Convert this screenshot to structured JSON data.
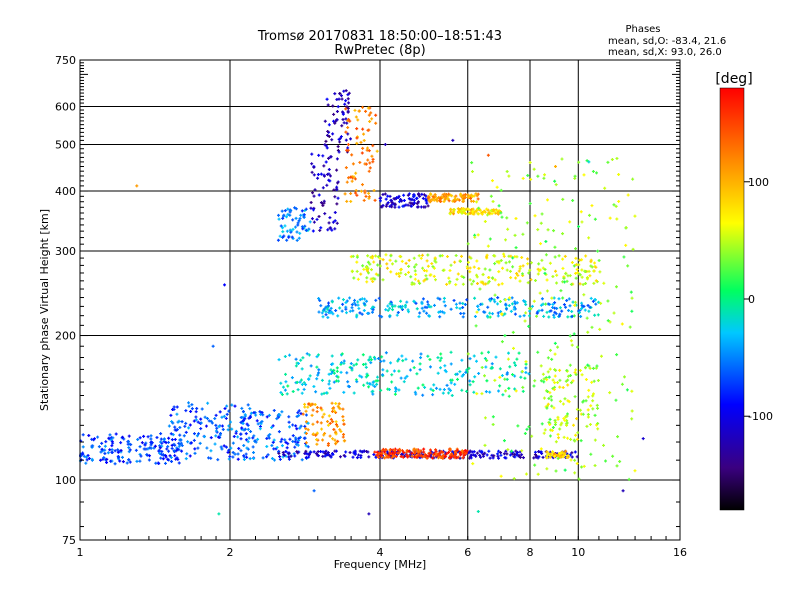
{
  "chart_data": {
    "type": "scatter",
    "title": "Tromsø 20170831 18:50:00–18:51:43",
    "subtitle": "RwPretec (8p)",
    "xlabel": "Frequency [MHz]",
    "ylabel": "Stationary phase Virtual Height [km]",
    "x_scale": "log2",
    "y_scale": "log",
    "xlim": [
      1,
      16
    ],
    "ylim": [
      75,
      750
    ],
    "x_ticks": [
      1,
      2,
      4,
      6,
      8,
      10,
      16
    ],
    "x_tick_labels": [
      "1",
      "2",
      "4",
      "6",
      "8",
      "10",
      "16"
    ],
    "y_ticks": [
      75,
      100,
      200,
      300,
      400,
      500,
      600,
      750
    ],
    "y_tick_labels": [
      "75",
      "100",
      "200",
      "300",
      "400",
      "500",
      "600",
      "750"
    ],
    "grid": true,
    "legend": {
      "title": "Phases",
      "lines": [
        "mean, sd,O: -83.4, 21.6",
        "mean, sd,X:  93.0, 26.0"
      ],
      "position": "top-right"
    },
    "colorbar": {
      "label": "[deg]",
      "min": -180,
      "max": 180,
      "ticks": [
        100,
        0,
        -100
      ],
      "tick_labels": [
        "100",
        "0",
        "-100"
      ],
      "colormap": "rainbow"
    },
    "clusters": [
      {
        "xmin": 1.0,
        "xmax": 1.6,
        "ymin": 108,
        "ymax": 125,
        "phase": -70
      },
      {
        "xmin": 1.5,
        "xmax": 2.2,
        "ymin": 110,
        "ymax": 145,
        "phase": -65
      },
      {
        "xmin": 2.1,
        "xmax": 2.9,
        "ymin": 110,
        "ymax": 140,
        "phase": -60
      },
      {
        "xmin": 2.5,
        "xmax": 2.9,
        "ymin": 315,
        "ymax": 370,
        "phase": -50
      },
      {
        "xmin": 2.9,
        "xmax": 3.3,
        "ymin": 330,
        "ymax": 480,
        "phase": -115
      },
      {
        "xmin": 3.1,
        "xmax": 3.5,
        "ymin": 480,
        "ymax": 650,
        "phase": -120
      },
      {
        "xmin": 3.4,
        "xmax": 3.95,
        "ymin": 380,
        "ymax": 600,
        "phase": 120
      },
      {
        "xmin": 2.8,
        "xmax": 3.4,
        "ymin": 118,
        "ymax": 145,
        "phase": 110
      },
      {
        "xmin": 2.5,
        "xmax": 10.0,
        "ymin": 111,
        "ymax": 115,
        "phase": -110
      },
      {
        "xmin": 3.9,
        "xmax": 6.0,
        "ymin": 111,
        "ymax": 116,
        "phase": 150
      },
      {
        "xmin": 8.6,
        "xmax": 9.6,
        "ymin": 111,
        "ymax": 115,
        "phase": 90
      },
      {
        "xmin": 4.0,
        "xmax": 5.0,
        "ymin": 370,
        "ymax": 395,
        "phase": -110
      },
      {
        "xmin": 5.0,
        "xmax": 6.3,
        "ymin": 380,
        "ymax": 395,
        "phase": 110
      },
      {
        "xmin": 5.5,
        "xmax": 7.0,
        "ymin": 358,
        "ymax": 368,
        "phase": 80
      },
      {
        "xmin": 3.0,
        "xmax": 11.0,
        "ymin": 218,
        "ymax": 240,
        "phase": -40
      },
      {
        "xmin": 3.5,
        "xmax": 11.0,
        "ymin": 255,
        "ymax": 295,
        "phase": 60
      },
      {
        "xmin": 2.5,
        "xmax": 8.0,
        "ymin": 150,
        "ymax": 185,
        "phase": -20
      },
      {
        "xmin": 8.5,
        "xmax": 11.0,
        "ymin": 120,
        "ymax": 175,
        "phase": 50
      },
      {
        "xmin": 6.0,
        "xmax": 13.0,
        "ymin": 100,
        "ymax": 470,
        "phase": 40
      }
    ],
    "points": [
      {
        "x": 1.3,
        "y": 410,
        "phase": 110
      },
      {
        "x": 1.85,
        "y": 190,
        "phase": -60
      },
      {
        "x": 1.95,
        "y": 255,
        "phase": -90
      },
      {
        "x": 1.9,
        "y": 85,
        "phase": -10
      },
      {
        "x": 2.95,
        "y": 95,
        "phase": -60
      },
      {
        "x": 3.8,
        "y": 85,
        "phase": -120
      },
      {
        "x": 4.1,
        "y": 500,
        "phase": -120
      },
      {
        "x": 5.6,
        "y": 510,
        "phase": -120
      },
      {
        "x": 6.6,
        "y": 475,
        "phase": 140
      },
      {
        "x": 9.0,
        "y": 450,
        "phase": 100
      },
      {
        "x": 10.5,
        "y": 460,
        "phase": -20
      },
      {
        "x": 12.3,
        "y": 95,
        "phase": -120
      },
      {
        "x": 13.5,
        "y": 122,
        "phase": -110
      },
      {
        "x": 6.3,
        "y": 86,
        "phase": -10
      }
    ]
  }
}
